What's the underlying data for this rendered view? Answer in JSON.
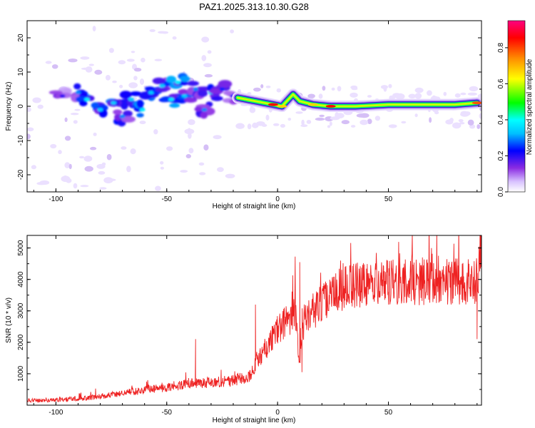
{
  "title": "PAZ1.2025.313.10.30.G28",
  "chart_data": [
    {
      "type": "heatmap",
      "name": "spectrogram",
      "xlabel": "Height of straight line (km)",
      "ylabel": "Frequency (Hz)",
      "xlim": [
        -113,
        92
      ],
      "ylim": [
        -25,
        25
      ],
      "xticks": [
        -100,
        -50,
        0,
        50
      ],
      "yticks": [
        -20,
        -10,
        0,
        10,
        20
      ],
      "colorbar": {
        "label": "Normalized spectral amplitude",
        "range": [
          0,
          0.95
        ],
        "ticks": [
          "0.0",
          "0.2",
          "0.4",
          "0.6",
          "0.8"
        ],
        "colormap": [
          "#ffffff",
          "#d8c2ff",
          "#8a2be2",
          "#0000ff",
          "#00bfff",
          "#00ffff",
          "#00ff00",
          "#ffff00",
          "#ff8c00",
          "#ff0000",
          "#ff0080"
        ]
      },
      "blobs": [
        {
          "x": -97,
          "y": 3,
          "v": 0.25
        },
        {
          "x": -90,
          "y": 4,
          "v": 0.35
        },
        {
          "x": -86,
          "y": 2,
          "v": 0.45
        },
        {
          "x": -80,
          "y": -1,
          "v": 0.4
        },
        {
          "x": -74,
          "y": 1,
          "v": 0.4
        },
        {
          "x": -70,
          "y": -3,
          "v": 0.35
        },
        {
          "x": -66,
          "y": 2,
          "v": 0.4
        },
        {
          "x": -61,
          "y": -1,
          "v": 0.45
        },
        {
          "x": -57,
          "y": 4,
          "v": 0.4
        },
        {
          "x": -52,
          "y": 6,
          "v": 0.4
        },
        {
          "x": -48,
          "y": 2,
          "v": 0.45
        },
        {
          "x": -45,
          "y": 7,
          "v": 0.45
        },
        {
          "x": -42,
          "y": 3,
          "v": 0.4
        },
        {
          "x": -37,
          "y": 5,
          "v": 0.35
        },
        {
          "x": -33,
          "y": -1,
          "v": 0.35
        },
        {
          "x": -30,
          "y": 4,
          "v": 0.4
        },
        {
          "x": -25,
          "y": 5,
          "v": 0.3
        },
        {
          "x": -20,
          "y": 3,
          "v": 0.3
        }
      ],
      "ridge": [
        {
          "x": -18,
          "y": 2.5,
          "v": 0.3
        },
        {
          "x": -14,
          "y": 2,
          "v": 0.45
        },
        {
          "x": -10,
          "y": 1.5,
          "v": 0.5
        },
        {
          "x": -6,
          "y": 1,
          "v": 0.6
        },
        {
          "x": -2,
          "y": 0.5,
          "v": 0.85
        },
        {
          "x": 2,
          "y": 0,
          "v": 0.7
        },
        {
          "x": 7,
          "y": 3.5,
          "v": 0.55
        },
        {
          "x": 10,
          "y": 1.5,
          "v": 0.6
        },
        {
          "x": 16,
          "y": 0.5,
          "v": 0.7
        },
        {
          "x": 24,
          "y": 0,
          "v": 0.85
        },
        {
          "x": 35,
          "y": 0,
          "v": 0.55
        },
        {
          "x": 50,
          "y": 0.5,
          "v": 0.55
        },
        {
          "x": 65,
          "y": 0.5,
          "v": 0.55
        },
        {
          "x": 80,
          "y": 0.5,
          "v": 0.55
        },
        {
          "x": 90,
          "y": 1,
          "v": 0.8
        }
      ]
    },
    {
      "type": "line",
      "name": "snr",
      "xlabel": "Height of straight line (km)",
      "ylabel": "SNR (10 * v/v)",
      "xlim": [
        -113,
        92
      ],
      "ylim": [
        0,
        5400
      ],
      "xticks": [
        -100,
        -50,
        0,
        50
      ],
      "yticks": [
        1000,
        2000,
        3000,
        4000,
        5000
      ],
      "color": "#ee2222",
      "x": [
        -113,
        -100,
        -90,
        -80,
        -70,
        -60,
        -50,
        -40,
        -30,
        -20,
        -12,
        -10,
        -8,
        -5,
        -2,
        0,
        3,
        6,
        8,
        10,
        12,
        14,
        18,
        22,
        26,
        30,
        35,
        40,
        45,
        50,
        55,
        60,
        65,
        70,
        75,
        80,
        85,
        88,
        90,
        92
      ],
      "y": [
        150,
        170,
        200,
        280,
        380,
        480,
        560,
        680,
        720,
        780,
        950,
        1350,
        1550,
        1850,
        2200,
        2400,
        2600,
        2800,
        2950,
        1300,
        2700,
        2900,
        3100,
        3400,
        3600,
        3700,
        3800,
        3850,
        3850,
        3900,
        3900,
        3900,
        3900,
        3900,
        3950,
        3950,
        3950,
        3900,
        4000,
        5300
      ],
      "spikes": [
        {
          "x": -37,
          "y": 2100
        },
        {
          "x": -10,
          "y": 3200
        },
        {
          "x": 10,
          "y": 4550
        },
        {
          "x": 11,
          "y": 1050
        },
        {
          "x": 90,
          "y": 2100
        }
      ]
    }
  ]
}
